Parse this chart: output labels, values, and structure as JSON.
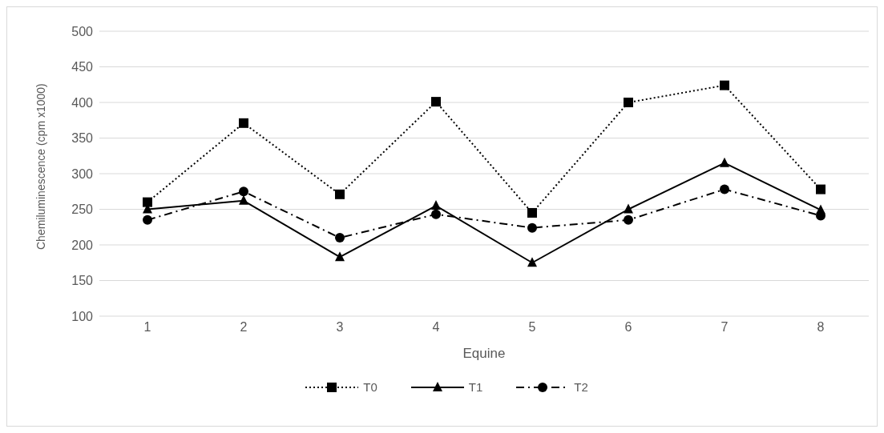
{
  "chart_data": {
    "type": "line",
    "xlabel": "Equine",
    "ylabel": "Chemiluminescence (cpm x1000)",
    "categories": [
      "1",
      "2",
      "3",
      "4",
      "5",
      "6",
      "7",
      "8"
    ],
    "series": [
      {
        "name": "T0",
        "color": "#000000",
        "marker": "square",
        "line_style": "dotted",
        "values": [
          260,
          371,
          271,
          401,
          245,
          400,
          424,
          278
        ]
      },
      {
        "name": "T1",
        "color": "#000000",
        "marker": "triangle",
        "line_style": "solid",
        "values": [
          250,
          262,
          183,
          255,
          175,
          250,
          315,
          249
        ]
      },
      {
        "name": "T2",
        "color": "#000000",
        "marker": "circle",
        "line_style": "dashed",
        "values": [
          235,
          275,
          210,
          243,
          224,
          235,
          278,
          241
        ]
      }
    ],
    "ylim": [
      100,
      500
    ],
    "yticks": [
      100,
      150,
      200,
      250,
      300,
      350,
      400,
      450,
      500
    ],
    "grid": "y",
    "legend": "bottom"
  }
}
